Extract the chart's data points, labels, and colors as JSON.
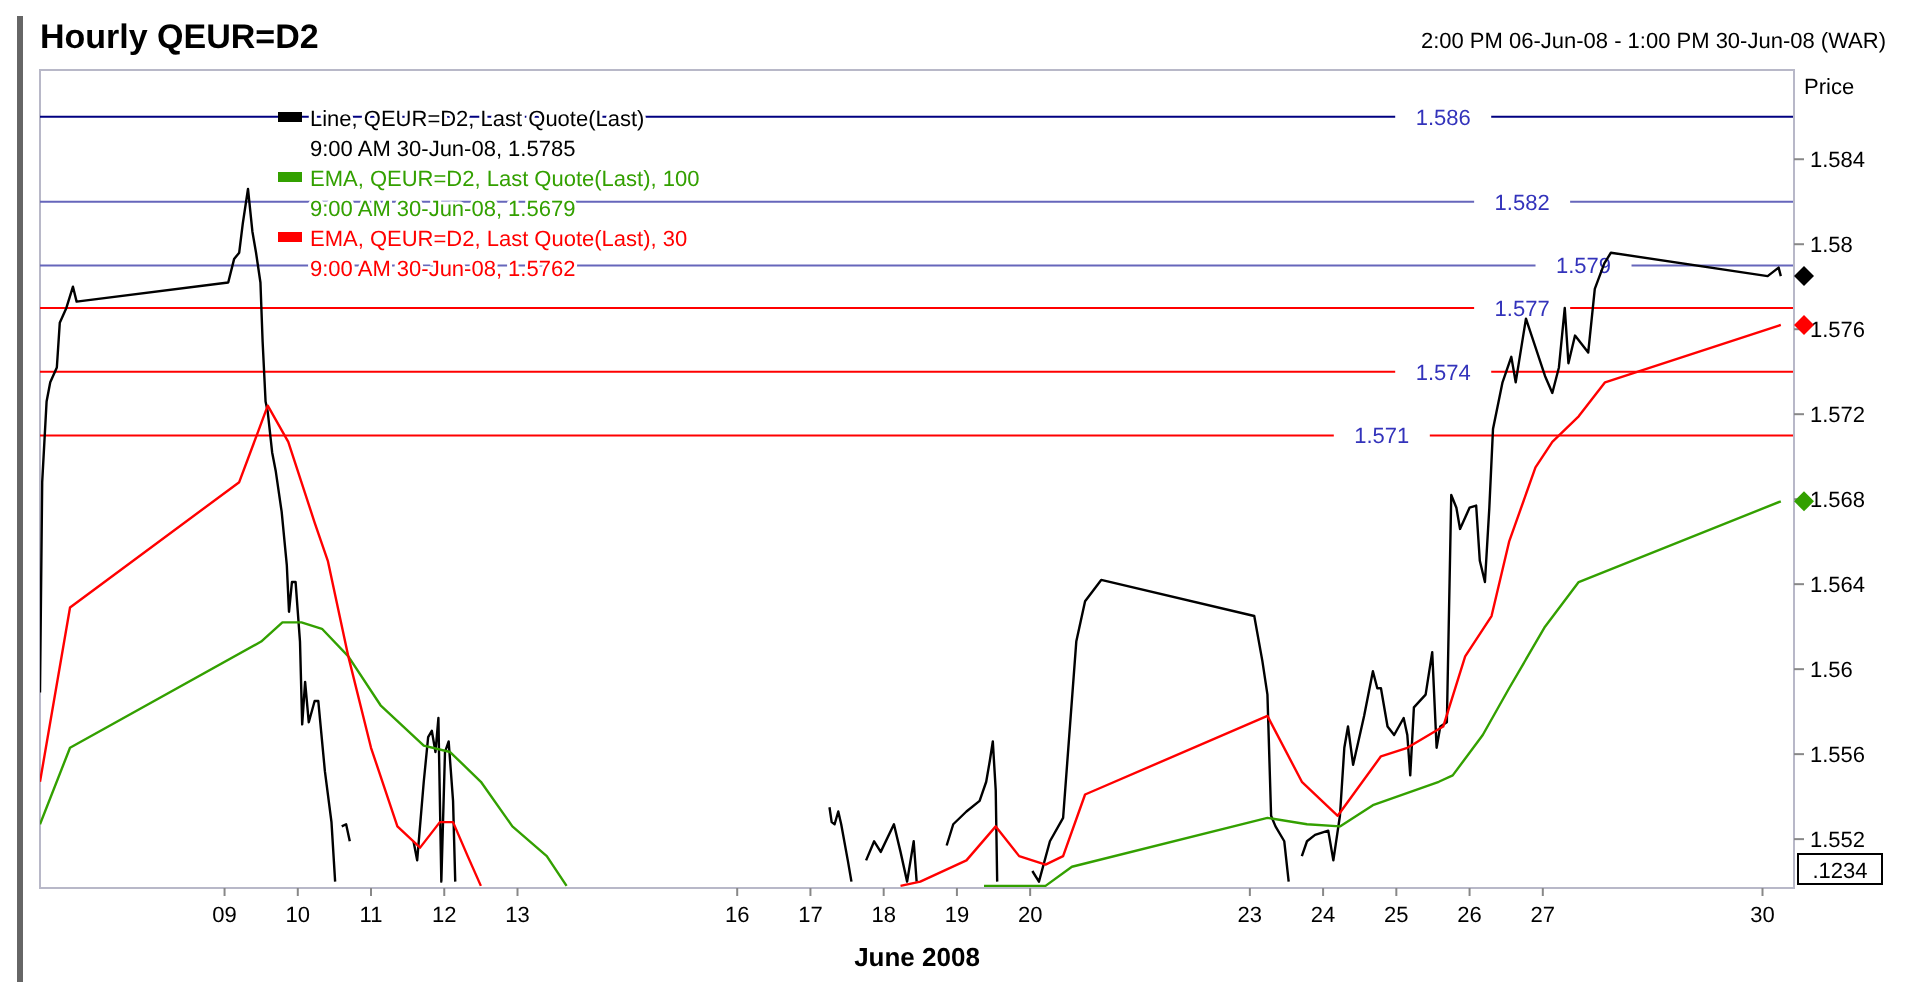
{
  "chart_data": {
    "type": "line",
    "title": "Hourly QEUR=D2",
    "subtitle": "2:00 PM 06-Jun-08 - 1:00 PM 30-Jun-08 (WAR)",
    "xlabel": "June 2008",
    "ylabel": "Price",
    "xlim": [
      6.48,
      30.43
    ],
    "xticks": [
      {
        "value": 9,
        "label": "09"
      },
      10,
      11,
      12,
      13,
      16,
      17,
      18,
      19,
      20,
      23,
      24,
      25,
      26,
      27,
      30
    ],
    "ylim": [
      1.5497,
      1.5882
    ],
    "yticks": [
      1.552,
      1.556,
      1.56,
      1.564,
      1.568,
      1.572,
      1.576,
      1.58,
      1.584
    ],
    "grid": false,
    "legend": "top left",
    "marker": "none",
    "line_style": "solid",
    "series": [
      {
        "name": "Line, QEUR=D2, Last Quote(Last)",
        "color": "#000000",
        "x": [
          6.48,
          6.51,
          6.57,
          6.62,
          6.71,
          6.75,
          6.84,
          6.93,
          6.98,
          9.05,
          9.13,
          9.2,
          9.25,
          9.32,
          9.38,
          9.43,
          9.49,
          9.52,
          9.56,
          9.59,
          9.65,
          9.7,
          9.78,
          9.85,
          9.88,
          9.92,
          9.97,
          10.03,
          10.06,
          10.1,
          10.15,
          10.23,
          10.28,
          10.37,
          10.46,
          10.51,
          10.55,
          10.6,
          10.66,
          10.71,
          10.8,
          11.58,
          11.63,
          11.72,
          11.78,
          11.83,
          11.88,
          11.92,
          11.96,
          12.01,
          12.06,
          12.12,
          12.15,
          12.2,
          17.26,
          17.29,
          17.33,
          17.38,
          17.42,
          17.51,
          17.56,
          17.62,
          17.76,
          17.87,
          17.96,
          18.14,
          18.23,
          18.32,
          18.41,
          18.45,
          18.5,
          18.86,
          18.95,
          19.13,
          19.31,
          19.4,
          19.45,
          19.49,
          19.53,
          19.55,
          19.6,
          20.03,
          20.12,
          20.27,
          20.45,
          20.63,
          20.75,
          20.97,
          23.06,
          23.17,
          23.24,
          23.29,
          23.35,
          23.47,
          23.53,
          23.58,
          23.71,
          23.78,
          23.89,
          24.07,
          24.14,
          24.23,
          24.29,
          24.34,
          24.41,
          24.56,
          24.68,
          24.74,
          24.79,
          24.88,
          24.97,
          25.1,
          25.15,
          25.19,
          25.24,
          25.4,
          25.49,
          25.55,
          25.6,
          25.69,
          25.75,
          25.82,
          25.87,
          26.0,
          26.09,
          26.14,
          26.21,
          26.27,
          26.32,
          26.45,
          26.57,
          26.63,
          26.77,
          27.03,
          27.13,
          27.22,
          27.3,
          27.35,
          27.44,
          27.62,
          27.71,
          27.84,
          27.93,
          30.07,
          30.22,
          30.25
        ],
        "values": [
          1.5589,
          1.5688,
          1.5726,
          1.5735,
          1.5742,
          1.5763,
          1.577,
          1.578,
          1.5773,
          1.5782,
          1.5793,
          1.5796,
          1.581,
          1.5826,
          1.5806,
          1.5796,
          1.5782,
          1.5754,
          1.5726,
          1.5721,
          1.5702,
          1.5693,
          1.5674,
          1.5649,
          1.5627,
          1.5641,
          1.5641,
          1.5613,
          1.5574,
          1.5594,
          1.5575,
          1.5585,
          1.5585,
          1.5552,
          1.5528,
          1.55,
          null,
          1.5526,
          1.5527,
          1.5519,
          null,
          1.5519,
          1.551,
          1.5547,
          1.5568,
          1.5571,
          1.5561,
          1.5577,
          1.55,
          1.5561,
          1.5566,
          1.5538,
          1.55,
          null,
          1.5535,
          1.5528,
          1.5527,
          1.5533,
          1.5527,
          1.551,
          1.55,
          null,
          1.551,
          1.5519,
          1.5514,
          1.5527,
          1.5514,
          1.55,
          1.5519,
          1.55,
          null,
          1.5517,
          1.5527,
          1.5533,
          1.5538,
          1.5547,
          1.5557,
          1.5566,
          1.5543,
          1.55,
          null,
          1.5505,
          1.55,
          1.5519,
          1.553,
          1.5613,
          1.5632,
          1.5642,
          1.5625,
          1.5604,
          1.5588,
          1.5531,
          1.5526,
          1.5519,
          1.55,
          null,
          1.5512,
          1.5519,
          1.5522,
          1.5524,
          1.551,
          1.5531,
          1.5563,
          1.5573,
          1.5555,
          1.5578,
          1.5599,
          1.5591,
          1.5591,
          1.5573,
          1.5569,
          1.5577,
          1.5569,
          1.555,
          1.5582,
          1.5588,
          1.5608,
          1.5563,
          1.5573,
          1.5575,
          1.5682,
          1.5676,
          1.5666,
          1.5676,
          1.5677,
          1.5651,
          1.5641,
          1.5676,
          1.5713,
          1.5735,
          1.5747,
          1.5735,
          1.5765,
          1.5738,
          1.573,
          1.5742,
          1.577,
          1.5744,
          1.5757,
          1.5749,
          1.5779,
          1.5791,
          1.5796,
          1.5785,
          1.5789,
          1.5785
        ]
      },
      {
        "name": "EMA, QEUR=D2, Last Quote(Last),  100",
        "color": "#33a000",
        "x": [
          6.48,
          6.89,
          9.5,
          9.79,
          10.05,
          10.33,
          10.69,
          11.13,
          11.72,
          12.08,
          12.5,
          12.93,
          13.4,
          13.67,
          13.8,
          19.37,
          20.21,
          20.57,
          23.24,
          23.78,
          24.23,
          24.68,
          25.58,
          25.77,
          26.18,
          26.54,
          27.03,
          27.49,
          30.25
        ],
        "values": [
          1.5527,
          1.5563,
          1.5613,
          1.5622,
          1.5622,
          1.5619,
          1.5606,
          1.5583,
          1.5564,
          1.5561,
          1.5547,
          1.5526,
          1.5512,
          1.5498,
          null,
          1.5498,
          1.5498,
          1.5507,
          1.553,
          1.5527,
          1.5526,
          1.5536,
          1.5547,
          1.555,
          1.5569,
          1.5591,
          1.562,
          1.5641,
          1.5679
        ]
      },
      {
        "name": "EMA, QEUR=D2, Last Quote(Last),  30",
        "color": "#ff0000",
        "x": [
          6.48,
          6.89,
          9.2,
          9.59,
          9.87,
          10.23,
          10.41,
          10.69,
          11.0,
          11.36,
          11.67,
          11.94,
          12.12,
          12.32,
          12.5,
          12.6,
          18.23,
          18.5,
          19.13,
          19.53,
          19.85,
          20.21,
          20.45,
          20.75,
          23.24,
          23.71,
          24.2,
          24.79,
          25.15,
          25.64,
          25.94,
          26.3,
          26.54,
          26.9,
          27.13,
          27.49,
          27.85,
          30.25
        ],
        "values": [
          1.5547,
          1.5629,
          1.5688,
          1.5724,
          1.5707,
          1.5669,
          1.5651,
          1.5606,
          1.5563,
          1.5526,
          1.5516,
          1.5528,
          1.5528,
          1.5512,
          1.5498,
          null,
          1.5498,
          1.55,
          1.551,
          1.5526,
          1.5512,
          1.5508,
          1.5512,
          1.5541,
          1.5578,
          1.5547,
          1.5531,
          1.5559,
          1.5563,
          1.5573,
          1.5606,
          1.5625,
          1.566,
          1.5695,
          1.5707,
          1.5719,
          1.5735,
          1.5762
        ]
      }
    ],
    "ref_lines": [
      {
        "axis": "y",
        "value": 1.586,
        "label": "1.586",
        "color": "#000080"
      },
      {
        "axis": "y",
        "value": 1.582,
        "label": "1.582",
        "color": "#6666bb"
      },
      {
        "axis": "y",
        "value": 1.579,
        "label": "1.579",
        "color": "#6666bb"
      },
      {
        "axis": "y",
        "value": 1.577,
        "label": "1.577",
        "color": "#ff0000"
      },
      {
        "axis": "y",
        "value": 1.574,
        "label": "1.574",
        "color": "#ff0000"
      },
      {
        "axis": "y",
        "value": 1.571,
        "label": "1.571",
        "color": "#ff0000"
      }
    ],
    "annotations": [
      "9:00 AM 30-Jun-08, 1.5785",
      "9:00 AM 30-Jun-08, 1.5679",
      "9:00 AM 30-Jun-08, 1.5762",
      ".1234"
    ]
  }
}
